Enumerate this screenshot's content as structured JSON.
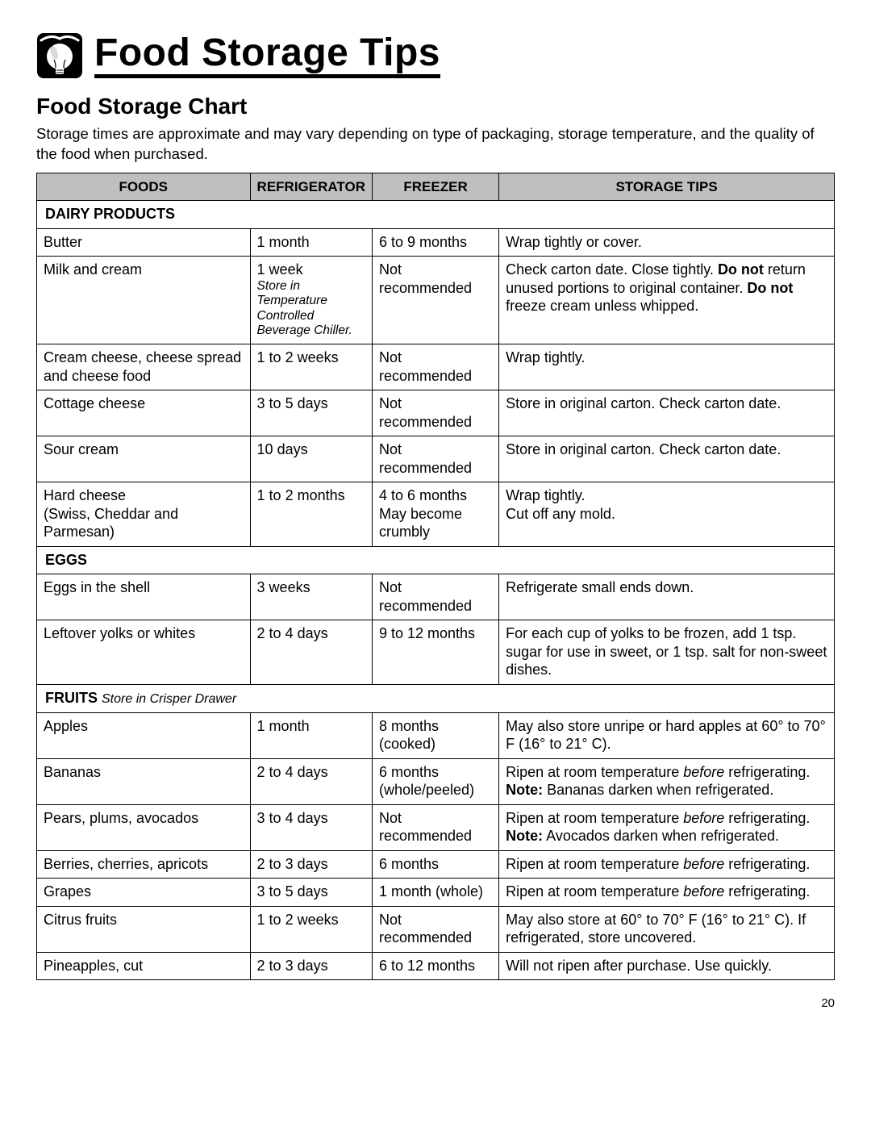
{
  "header": {
    "title": "Food Storage Tips"
  },
  "subheading": "Food Storage Chart",
  "intro": "Storage times are approximate and may vary depending on type of packaging, storage temperature, and the quality of the food when purchased.",
  "columns": {
    "foods": "FOODS",
    "fridge": "REFRIGERATOR",
    "freezer": "FREEZER",
    "tips": "STORAGE TIPS"
  },
  "sections": [
    {
      "title": "DAIRY PRODUCTS",
      "note": "",
      "rows": [
        {
          "food": "Butter",
          "fridge": "1 month",
          "fridge_note": "",
          "freezer": "6 to 9 months",
          "tips": "Wrap tightly or cover."
        },
        {
          "food": "Milk and cream",
          "fridge": "1 week",
          "fridge_note": "Store in Temperature Controlled Beverage Chiller.",
          "freezer": "Not recommended",
          "tips": "Check carton date. Close tightly. <b>Do not</b> return unused portions to original container. <b>Do not</b> freeze cream unless whipped."
        },
        {
          "food": "Cream cheese, cheese spread and cheese food",
          "fridge": "1 to 2 weeks",
          "fridge_note": "",
          "freezer": "Not recommended",
          "tips": "Wrap tightly."
        },
        {
          "food": "Cottage cheese",
          "fridge": "3 to 5 days",
          "fridge_note": "",
          "freezer": "Not recommended",
          "tips": "Store in original carton. Check carton date."
        },
        {
          "food": "Sour cream",
          "fridge": "10 days",
          "fridge_note": "",
          "freezer": "Not recommended",
          "tips": "Store in original carton. Check carton date."
        },
        {
          "food": "Hard cheese<br>(Swiss, Cheddar and Parmesan)",
          "fridge": "1 to 2 months",
          "fridge_note": "",
          "freezer": "4 to 6 months<br>May become crumbly",
          "tips": "Wrap tightly.<br>Cut off any mold."
        }
      ]
    },
    {
      "title": "EGGS",
      "note": "",
      "rows": [
        {
          "food": "Eggs in the shell",
          "fridge": "3 weeks",
          "fridge_note": "",
          "freezer": "Not recommended",
          "tips": "Refrigerate small ends down."
        },
        {
          "food": "Leftover yolks or whites",
          "fridge": "2 to 4 days",
          "fridge_note": "",
          "freezer": "9 to 12 months",
          "tips": "For each cup of yolks to be frozen, add 1 tsp. sugar for use in sweet, or 1 tsp. salt for non-sweet dishes."
        }
      ]
    },
    {
      "title": "FRUITS",
      "note": "Store in Crisper Drawer",
      "rows": [
        {
          "food": "Apples",
          "fridge": "1 month",
          "fridge_note": "",
          "freezer": "8 months (cooked)",
          "tips": "May also store unripe or hard apples at 60° to 70° F (16° to 21° C)."
        },
        {
          "food": "Bananas",
          "fridge": "2 to 4 days",
          "fridge_note": "",
          "freezer": "6 months (whole/peeled)",
          "tips": "Ripen at room temperature <i>before</i> refrigerating. <b>Note:</b> Bananas darken when refrigerated."
        },
        {
          "food": "Pears, plums, avocados",
          "fridge": "3 to 4 days",
          "fridge_note": "",
          "freezer": "Not recommended",
          "tips": "Ripen at room temperature <i>before</i> refrigerating. <b>Note:</b> Avocados darken when refrigerated."
        },
        {
          "food": "Berries, cherries, apricots",
          "fridge": "2 to 3 days",
          "fridge_note": "",
          "freezer": "6 months",
          "tips": "Ripen at room temperature <i>before</i> refrigerating."
        },
        {
          "food": "Grapes",
          "fridge": "3 to 5 days",
          "fridge_note": "",
          "freezer": "1 month (whole)",
          "tips": "Ripen at room temperature <i>before</i> refrigerating."
        },
        {
          "food": "Citrus fruits",
          "fridge": "1 to 2 weeks",
          "fridge_note": "",
          "freezer": "Not recommended",
          "tips": "May also store at 60° to 70° F (16° to 21° C). If refrigerated, store uncovered."
        },
        {
          "food": "Pineapples, cut",
          "fridge": "2 to 3 days",
          "fridge_note": "",
          "freezer": "6 to 12 months",
          "tips": "Will not ripen after purchase. Use quickly."
        }
      ]
    }
  ],
  "page_number": "20"
}
